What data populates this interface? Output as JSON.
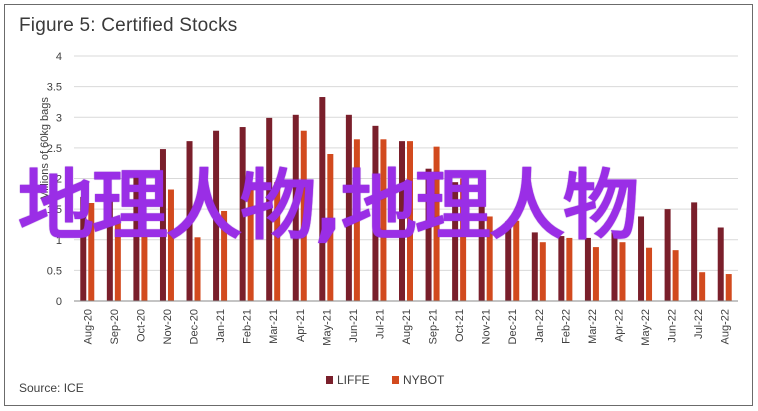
{
  "title": "Figure 5: Certified Stocks",
  "source": "Source: ICE",
  "overlay_text": "地理人物,地理人物",
  "colors": {
    "liffe": "#7a1f2b",
    "nybot": "#d24a1e",
    "grid": "#d9d9d9",
    "axis": "#888888",
    "text": "#404040",
    "overlay": "#9a2ee6"
  },
  "chart_data": {
    "type": "bar",
    "ylabel": "Millions of 60kg bags",
    "ylim": [
      0,
      4
    ],
    "yticks": [
      0,
      0.5,
      1,
      1.5,
      2,
      2.5,
      3,
      3.5,
      4
    ],
    "grid": true,
    "legend_position": "bottom-center",
    "categories": [
      "Aug-20",
      "Sep-20",
      "Oct-20",
      "Nov-20",
      "Dec-20",
      "Jan-21",
      "Feb-21",
      "Mar-21",
      "Apr-21",
      "May-21",
      "Jun-21",
      "Jul-21",
      "Aug-21",
      "Sep-21",
      "Oct-21",
      "Nov-21",
      "Dec-21",
      "Jan-22",
      "Feb-22",
      "Mar-22",
      "Apr-22",
      "May-22",
      "Jun-22",
      "Jul-22",
      "Aug-22"
    ],
    "series": [
      {
        "name": "LIFFE",
        "values": [
          1.7,
          1.7,
          2.07,
          2.48,
          2.61,
          2.78,
          2.84,
          2.99,
          3.04,
          3.33,
          3.04,
          2.86,
          2.61,
          2.16,
          1.94,
          1.56,
          1.3,
          1.12,
          1.06,
          1.03,
          1.12,
          1.38,
          1.5,
          1.61,
          1.2
        ]
      },
      {
        "name": "NYBOT",
        "values": [
          1.6,
          1.27,
          1.09,
          1.82,
          1.04,
          1.47,
          1.82,
          1.94,
          2.78,
          2.4,
          2.64,
          2.64,
          2.61,
          2.52,
          2.0,
          1.38,
          1.31,
          0.96,
          1.03,
          0.88,
          0.96,
          0.87,
          0.83,
          0.47,
          0.44
        ]
      }
    ]
  }
}
